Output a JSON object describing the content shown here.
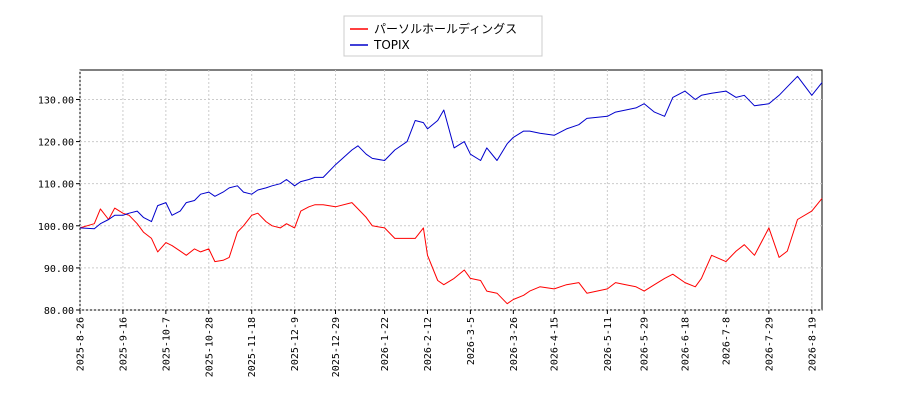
{
  "chart_data": {
    "type": "line",
    "title": "",
    "xlabel": "",
    "ylabel": "",
    "ylim": [
      80,
      137
    ],
    "yticks": [
      80,
      90,
      100,
      110,
      120,
      130
    ],
    "ytick_labels": [
      "80.00",
      "90.00",
      "100.00",
      "110.00",
      "120.00",
      "130.00"
    ],
    "xlim": [
      "2025-08-26",
      "2026-08-24"
    ],
    "xticks": [
      "2025-8-26",
      "2025-9-16",
      "2025-10-7",
      "2025-10-28",
      "2025-11-18",
      "2025-12-9",
      "2025-12-29",
      "2026-1-22",
      "2026-2-12",
      "2026-3-5",
      "2026-3-26",
      "2026-4-15",
      "2026-5-11",
      "2026-5-29",
      "2026-6-18",
      "2026-7-8",
      "2026-7-29",
      "2026-8-19"
    ],
    "grid": true,
    "legend_position": "top-center",
    "series": [
      {
        "name": "パーソルホールディングス",
        "color": "#ff0000",
        "x": [
          "2025-08-26",
          "2025-09-02",
          "2025-09-05",
          "2025-09-09",
          "2025-09-12",
          "2025-09-16",
          "2025-09-19",
          "2025-09-23",
          "2025-09-26",
          "2025-09-30",
          "2025-10-03",
          "2025-10-07",
          "2025-10-10",
          "2025-10-14",
          "2025-10-17",
          "2025-10-21",
          "2025-10-24",
          "2025-10-28",
          "2025-10-31",
          "2025-11-04",
          "2025-11-07",
          "2025-11-11",
          "2025-11-14",
          "2025-11-18",
          "2025-11-21",
          "2025-11-25",
          "2025-11-28",
          "2025-12-02",
          "2025-12-05",
          "2025-12-09",
          "2025-12-12",
          "2025-12-16",
          "2025-12-19",
          "2025-12-23",
          "2025-12-29",
          "2026-01-06",
          "2026-01-09",
          "2026-01-13",
          "2026-01-16",
          "2026-01-22",
          "2026-01-27",
          "2026-02-02",
          "2026-02-06",
          "2026-02-10",
          "2026-02-12",
          "2026-02-17",
          "2026-02-20",
          "2026-02-25",
          "2026-03-02",
          "2026-03-05",
          "2026-03-10",
          "2026-03-13",
          "2026-03-18",
          "2026-03-23",
          "2026-03-26",
          "2026-03-31",
          "2026-04-03",
          "2026-04-08",
          "2026-04-15",
          "2026-04-21",
          "2026-04-27",
          "2026-05-01",
          "2026-05-11",
          "2026-05-15",
          "2026-05-20",
          "2026-05-25",
          "2026-05-29",
          "2026-06-03",
          "2026-06-08",
          "2026-06-12",
          "2026-06-18",
          "2026-06-23",
          "2026-06-26",
          "2026-07-01",
          "2026-07-08",
          "2026-07-13",
          "2026-07-17",
          "2026-07-22",
          "2026-07-29",
          "2026-08-03",
          "2026-08-07",
          "2026-08-12",
          "2026-08-19",
          "2026-08-24"
        ],
        "values": [
          99.5,
          100.5,
          104.0,
          101.5,
          104.2,
          103.0,
          102.5,
          100.5,
          98.5,
          97.0,
          93.8,
          96.0,
          95.3,
          94.0,
          93.0,
          94.5,
          93.8,
          94.5,
          91.5,
          91.8,
          92.5,
          98.5,
          100.0,
          102.5,
          103.0,
          101.0,
          100.0,
          99.5,
          100.5,
          99.5,
          103.5,
          104.5,
          105.0,
          105.0,
          104.5,
          105.5,
          104.0,
          102.0,
          100.0,
          99.5,
          97.0,
          97.0,
          97.0,
          99.5,
          93.0,
          87.0,
          86.0,
          87.5,
          89.5,
          87.5,
          87.0,
          84.5,
          84.0,
          81.5,
          82.5,
          83.5,
          84.5,
          85.5,
          85.0,
          86.0,
          86.5,
          84.0,
          85.0,
          86.5,
          86.0,
          85.5,
          84.5,
          86.0,
          87.5,
          88.5,
          86.5,
          85.5,
          87.5,
          93.0,
          91.5,
          94.0,
          95.5,
          93.0,
          99.5,
          92.5,
          94.0,
          101.5,
          103.5,
          106.5
        ]
      },
      {
        "name": "TOPIX",
        "color": "#0000cc",
        "x": [
          "2025-08-26",
          "2025-09-02",
          "2025-09-05",
          "2025-09-09",
          "2025-09-12",
          "2025-09-16",
          "2025-09-19",
          "2025-09-23",
          "2025-09-26",
          "2025-09-30",
          "2025-10-03",
          "2025-10-07",
          "2025-10-10",
          "2025-10-14",
          "2025-10-17",
          "2025-10-21",
          "2025-10-24",
          "2025-10-28",
          "2025-10-31",
          "2025-11-04",
          "2025-11-07",
          "2025-11-11",
          "2025-11-14",
          "2025-11-18",
          "2025-11-21",
          "2025-11-25",
          "2025-11-28",
          "2025-12-02",
          "2025-12-05",
          "2025-12-09",
          "2025-12-12",
          "2025-12-16",
          "2025-12-19",
          "2025-12-23",
          "2025-12-29",
          "2026-01-06",
          "2026-01-09",
          "2026-01-13",
          "2026-01-16",
          "2026-01-22",
          "2026-01-27",
          "2026-02-02",
          "2026-02-06",
          "2026-02-10",
          "2026-02-12",
          "2026-02-17",
          "2026-02-20",
          "2026-02-25",
          "2026-03-02",
          "2026-03-05",
          "2026-03-10",
          "2026-03-13",
          "2026-03-18",
          "2026-03-23",
          "2026-03-26",
          "2026-03-31",
          "2026-04-03",
          "2026-04-08",
          "2026-04-15",
          "2026-04-21",
          "2026-04-27",
          "2026-05-01",
          "2026-05-11",
          "2026-05-15",
          "2026-05-20",
          "2026-05-25",
          "2026-05-29",
          "2026-06-03",
          "2026-06-08",
          "2026-06-12",
          "2026-06-18",
          "2026-06-23",
          "2026-06-26",
          "2026-07-01",
          "2026-07-08",
          "2026-07-13",
          "2026-07-17",
          "2026-07-22",
          "2026-07-29",
          "2026-08-03",
          "2026-08-07",
          "2026-08-12",
          "2026-08-19",
          "2026-08-24"
        ],
        "values": [
          99.5,
          99.3,
          100.5,
          101.5,
          102.5,
          102.5,
          103.0,
          103.5,
          102.0,
          101.0,
          104.8,
          105.5,
          102.5,
          103.5,
          105.5,
          106.0,
          107.5,
          108.0,
          107.0,
          108.0,
          109.0,
          109.5,
          108.0,
          107.5,
          108.5,
          109.0,
          109.5,
          110.0,
          111.0,
          109.5,
          110.5,
          111.0,
          111.5,
          111.5,
          114.5,
          118.0,
          119.0,
          117.0,
          116.0,
          115.5,
          118.0,
          120.0,
          125.0,
          124.5,
          123.0,
          125.0,
          127.5,
          118.5,
          120.0,
          117.0,
          115.5,
          118.5,
          115.5,
          119.5,
          121.0,
          122.5,
          122.5,
          122.0,
          121.5,
          123.0,
          124.0,
          125.5,
          126.0,
          127.0,
          127.5,
          128.0,
          129.0,
          127.0,
          126.0,
          130.5,
          132.0,
          130.0,
          131.0,
          131.5,
          132.0,
          130.5,
          131.0,
          128.5,
          129.0,
          131.0,
          133.0,
          135.5,
          131.0,
          134.0
        ]
      }
    ]
  }
}
